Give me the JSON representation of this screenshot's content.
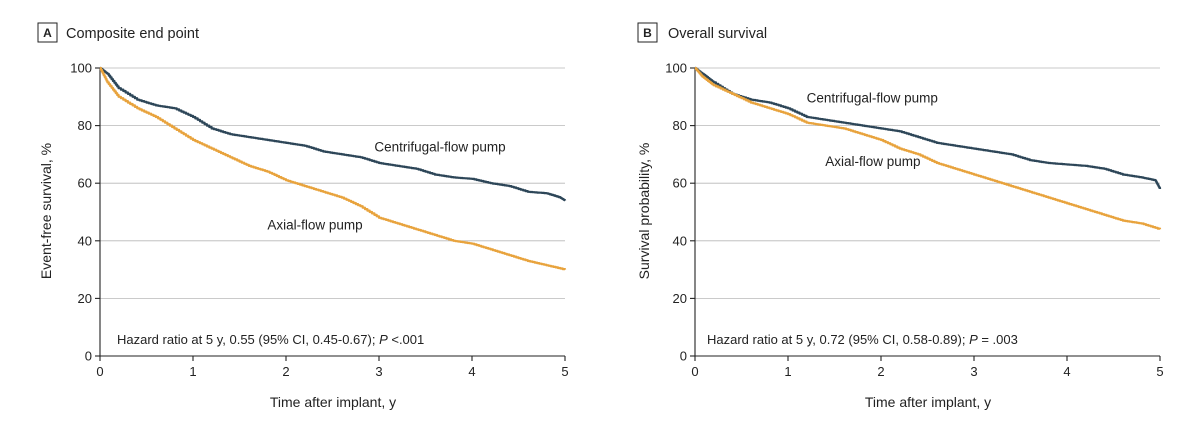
{
  "chart_data": [
    {
      "type": "line",
      "panel_letter": "A",
      "title": "Composite end point",
      "xlabel": "Time after implant, y",
      "ylabel": "Event-free survival, %",
      "xlim": [
        0,
        5
      ],
      "ylim": [
        0,
        100
      ],
      "xticks": [
        "0",
        "1",
        "2",
        "3",
        "4",
        "5"
      ],
      "yticks": [
        "0",
        "20",
        "40",
        "60",
        "80",
        "100"
      ],
      "grid": "horizontal",
      "annotation": {
        "prefix": "Hazard ratio at 5 y, 0.55 (95% CI, 0.45-0.67); ",
        "p_symbol": "P",
        "p_value": " <.001"
      },
      "series": [
        {
          "name": "Centrifugal-flow pump",
          "color": "#2d4658",
          "label_at": [
            2.95,
            71
          ],
          "points": [
            [
              0,
              100
            ],
            [
              0.08,
              98
            ],
            [
              0.2,
              93
            ],
            [
              0.4,
              89
            ],
            [
              0.6,
              87
            ],
            [
              0.8,
              86
            ],
            [
              1.0,
              83
            ],
            [
              1.2,
              79
            ],
            [
              1.4,
              77
            ],
            [
              1.6,
              76
            ],
            [
              1.8,
              75
            ],
            [
              2.0,
              74
            ],
            [
              2.2,
              73
            ],
            [
              2.4,
              71
            ],
            [
              2.6,
              70
            ],
            [
              2.8,
              69
            ],
            [
              3.0,
              67
            ],
            [
              3.2,
              66
            ],
            [
              3.4,
              65
            ],
            [
              3.6,
              63
            ],
            [
              3.8,
              62
            ],
            [
              4.0,
              61.5
            ],
            [
              4.2,
              60
            ],
            [
              4.4,
              59
            ],
            [
              4.6,
              57
            ],
            [
              4.8,
              56.5
            ],
            [
              4.95,
              55
            ],
            [
              5.0,
              54
            ]
          ]
        },
        {
          "name": "Axial-flow pump",
          "color": "#e8a33d",
          "label_at": [
            1.8,
            44
          ],
          "points": [
            [
              0,
              100
            ],
            [
              0.08,
              95
            ],
            [
              0.2,
              90
            ],
            [
              0.4,
              86
            ],
            [
              0.6,
              83
            ],
            [
              0.8,
              79
            ],
            [
              1.0,
              75
            ],
            [
              1.2,
              72
            ],
            [
              1.4,
              69
            ],
            [
              1.6,
              66
            ],
            [
              1.8,
              64
            ],
            [
              2.0,
              61
            ],
            [
              2.2,
              59
            ],
            [
              2.4,
              57
            ],
            [
              2.6,
              55
            ],
            [
              2.8,
              52
            ],
            [
              3.0,
              48
            ],
            [
              3.2,
              46
            ],
            [
              3.4,
              44
            ],
            [
              3.6,
              42
            ],
            [
              3.8,
              40
            ],
            [
              4.0,
              39
            ],
            [
              4.2,
              37
            ],
            [
              4.4,
              35
            ],
            [
              4.6,
              33
            ],
            [
              4.8,
              31.5
            ],
            [
              5.0,
              30
            ]
          ]
        }
      ]
    },
    {
      "type": "line",
      "panel_letter": "B",
      "title": "Overall survival",
      "xlabel": "Time after implant, y",
      "ylabel": "Survival probability, %",
      "xlim": [
        0,
        5
      ],
      "ylim": [
        0,
        100
      ],
      "xticks": [
        "0",
        "1",
        "2",
        "3",
        "4",
        "5"
      ],
      "yticks": [
        "0",
        "20",
        "40",
        "60",
        "80",
        "100"
      ],
      "grid": "horizontal",
      "annotation": {
        "prefix": "Hazard ratio at 5 y, 0.72 (95% CI, 0.58-0.89); ",
        "p_symbol": "P",
        "p_value": " = .003"
      },
      "series": [
        {
          "name": "Centrifugal-flow pump",
          "color": "#2d4658",
          "label_at": [
            1.2,
            88
          ],
          "points": [
            [
              0,
              100
            ],
            [
              0.08,
              98
            ],
            [
              0.2,
              95
            ],
            [
              0.4,
              91
            ],
            [
              0.6,
              89
            ],
            [
              0.8,
              88
            ],
            [
              1.0,
              86
            ],
            [
              1.2,
              83
            ],
            [
              1.4,
              82
            ],
            [
              1.6,
              81
            ],
            [
              1.8,
              80
            ],
            [
              2.0,
              79
            ],
            [
              2.2,
              78
            ],
            [
              2.4,
              76
            ],
            [
              2.6,
              74
            ],
            [
              2.8,
              73
            ],
            [
              3.0,
              72
            ],
            [
              3.2,
              71
            ],
            [
              3.4,
              70
            ],
            [
              3.6,
              68
            ],
            [
              3.8,
              67
            ],
            [
              4.0,
              66.5
            ],
            [
              4.2,
              66
            ],
            [
              4.4,
              65
            ],
            [
              4.6,
              63
            ],
            [
              4.8,
              62
            ],
            [
              4.95,
              61
            ],
            [
              5.0,
              58
            ]
          ]
        },
        {
          "name": "Axial-flow pump",
          "color": "#e8a33d",
          "label_at": [
            1.4,
            66
          ],
          "points": [
            [
              0,
              100
            ],
            [
              0.08,
              97
            ],
            [
              0.2,
              94
            ],
            [
              0.4,
              91
            ],
            [
              0.6,
              88
            ],
            [
              0.8,
              86
            ],
            [
              1.0,
              84
            ],
            [
              1.2,
              81
            ],
            [
              1.4,
              80
            ],
            [
              1.6,
              79
            ],
            [
              1.8,
              77
            ],
            [
              2.0,
              75
            ],
            [
              2.2,
              72
            ],
            [
              2.4,
              70
            ],
            [
              2.6,
              67
            ],
            [
              2.8,
              65
            ],
            [
              3.0,
              63
            ],
            [
              3.2,
              61
            ],
            [
              3.4,
              59
            ],
            [
              3.6,
              57
            ],
            [
              3.8,
              55
            ],
            [
              4.0,
              53
            ],
            [
              4.2,
              51
            ],
            [
              4.4,
              49
            ],
            [
              4.6,
              47
            ],
            [
              4.8,
              46
            ],
            [
              5.0,
              44
            ]
          ]
        }
      ]
    }
  ]
}
